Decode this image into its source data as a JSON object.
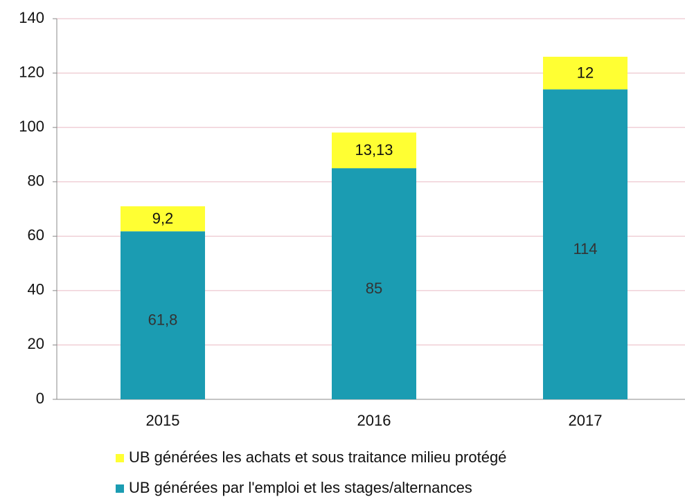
{
  "chart_data": {
    "type": "stacked_bar",
    "categories": [
      "2015",
      "2016",
      "2017"
    ],
    "series": [
      {
        "name": "UB générées par l'emploi et les stages/alternances",
        "color": "#1b9cb2",
        "values": [
          61.8,
          85,
          114
        ],
        "value_labels": [
          "61,8",
          "85",
          "114"
        ]
      },
      {
        "name": "UB générées les achats et sous traitance milieu protégé",
        "color": "#ffff33",
        "values": [
          9.2,
          13.13,
          12
        ],
        "value_labels": [
          "9,2",
          "13,13",
          "12"
        ]
      }
    ],
    "ylim": [
      0,
      140
    ],
    "yticks": [
      0,
      20,
      40,
      60,
      80,
      100,
      120,
      140
    ],
    "grid": true
  }
}
